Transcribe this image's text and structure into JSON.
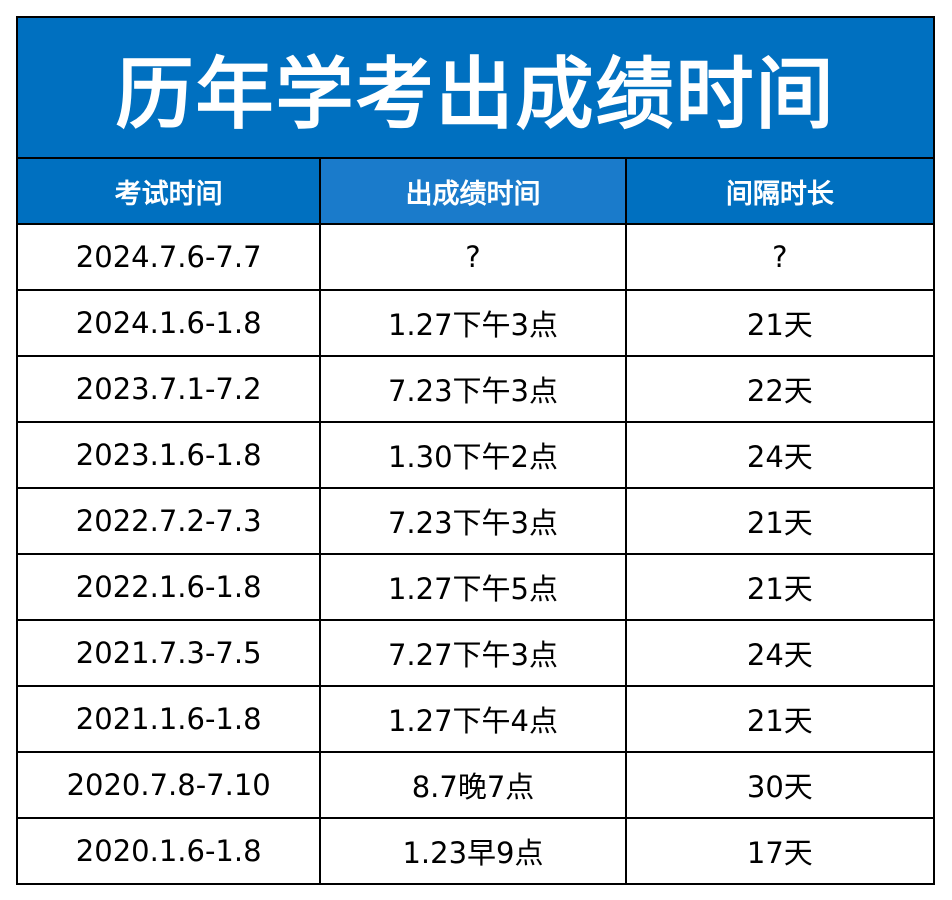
{
  "title": "历年学考出成绩时间",
  "columns": [
    "考试时间",
    "出成绩时间",
    "间隔时长"
  ],
  "rows": [
    {
      "exam": "2024.7.6-7.7",
      "release": "?",
      "interval": "?"
    },
    {
      "exam": "2024.1.6-1.8",
      "release": "1.27下午3点",
      "interval": "21天"
    },
    {
      "exam": "2023.7.1-7.2",
      "release": "7.23下午3点",
      "interval": "22天"
    },
    {
      "exam": "2023.1.6-1.8",
      "release": "1.30下午2点",
      "interval": "24天"
    },
    {
      "exam": "2022.7.2-7.3",
      "release": "7.23下午3点",
      "interval": "21天"
    },
    {
      "exam": "2022.1.6-1.8",
      "release": "1.27下午5点",
      "interval": "21天"
    },
    {
      "exam": "2021.7.3-7.5",
      "release": "7.27下午3点",
      "interval": "24天"
    },
    {
      "exam": "2021.1.6-1.8",
      "release": "1.27下午4点",
      "interval": "21天"
    },
    {
      "exam": "2020.7.8-7.10",
      "release": "8.7晚7点",
      "interval": "30天"
    },
    {
      "exam": "2020.1.6-1.8",
      "release": "1.23早9点",
      "interval": "17天"
    }
  ],
  "colors": {
    "header_bg": "#0070c0",
    "header_text": "#ffffff",
    "grid": "#000000"
  }
}
